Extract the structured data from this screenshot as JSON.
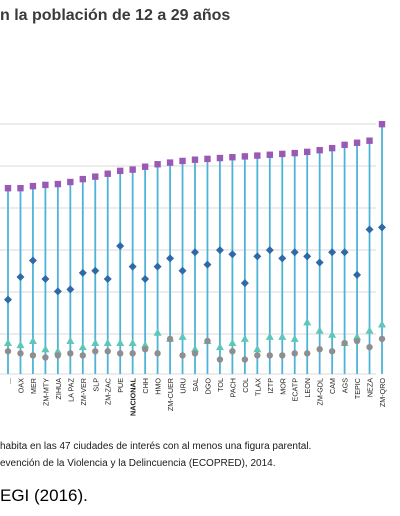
{
  "chart_data": {
    "type": "scatter",
    "title": "n la población de 12 a 29 años",
    "categories": [
      "...",
      "OAX",
      "MER",
      "ZM-MTY",
      "ZIHUA",
      "LA PAZ",
      "ZM-VER",
      "SLP",
      "ZM-ZAC",
      "PUE",
      "NACIONAL",
      "CHH",
      "HMO",
      "ZM-CUER",
      "URU",
      "SAL",
      "DGO",
      "TOL",
      "PACH",
      "COL",
      "TLAX",
      "IZTP",
      "MOR",
      "ECATP",
      "LEON",
      "ZM-GDL",
      "CAM",
      "AGS",
      "TEPIC",
      "NEZA",
      "ZM-QRO"
    ],
    "highlighted_category": "NACIONAL",
    "y_range": [
      0,
      6.2
    ],
    "grid": true,
    "series": [
      {
        "marker": "square",
        "color": "#9b59b6",
        "values": [
          4.5,
          4.5,
          4.55,
          4.58,
          4.6,
          4.65,
          4.72,
          4.78,
          4.85,
          4.92,
          4.95,
          5.02,
          5.08,
          5.12,
          5.16,
          5.19,
          5.21,
          5.23,
          5.25,
          5.27,
          5.29,
          5.31,
          5.33,
          5.35,
          5.38,
          5.42,
          5.47,
          5.55,
          5.6,
          5.65,
          6.05
        ]
      },
      {
        "marker": "diamond",
        "color": "#2f6aa8",
        "values": [
          1.8,
          2.35,
          2.75,
          2.3,
          2.0,
          2.05,
          2.45,
          2.5,
          2.3,
          3.1,
          2.6,
          2.3,
          2.6,
          2.8,
          2.5,
          2.95,
          2.65,
          3.0,
          2.9,
          2.2,
          2.85,
          3.0,
          2.8,
          2.95,
          2.85,
          2.7,
          2.95,
          2.95,
          2.4,
          3.5,
          3.55
        ]
      },
      {
        "marker": "triangle",
        "color": "#5fc7b8",
        "values": [
          0.75,
          0.7,
          0.8,
          0.6,
          0.55,
          0.8,
          0.65,
          0.75,
          0.75,
          0.75,
          0.75,
          0.7,
          1.0,
          0.85,
          0.9,
          0.6,
          0.8,
          0.65,
          0.75,
          0.85,
          0.6,
          0.9,
          0.9,
          0.85,
          1.25,
          1.05,
          0.95,
          0.75,
          0.9,
          1.05,
          1.2
        ]
      },
      {
        "marker": "circle",
        "color": "#8e8e8e",
        "values": [
          0.55,
          0.5,
          0.45,
          0.4,
          0.45,
          0.5,
          0.45,
          0.55,
          0.55,
          0.5,
          0.5,
          0.6,
          0.5,
          0.85,
          0.45,
          0.5,
          0.8,
          0.35,
          0.55,
          0.35,
          0.45,
          0.45,
          0.45,
          0.5,
          0.5,
          0.6,
          0.55,
          0.75,
          0.8,
          0.65,
          0.85
        ]
      }
    ]
  },
  "notes": {
    "line1": "habita en las 47 ciudades de interés con al menos una figura parental.",
    "line2": "evención de la Violencia y la Delincuencia (ECOPRED), 2014."
  },
  "caption": "EGI (2016)."
}
